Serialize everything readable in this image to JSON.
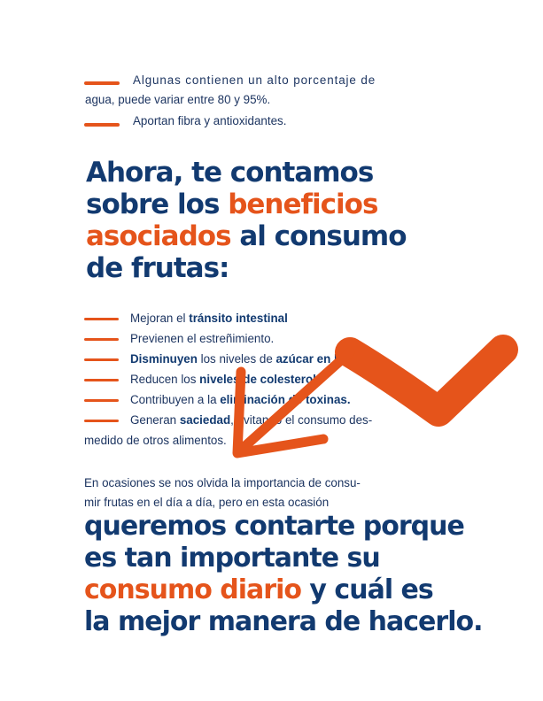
{
  "intro": {
    "item1_text": "Algunas contienen un alto porcentaje de",
    "item1_text_cont": "agua, puede variar entre 80 y 95%.",
    "item2_text": "Aportan fibra y antioxidantes."
  },
  "heading1": {
    "l1": "Ahora, te contamos",
    "l2_a": "sobre los ",
    "l2_b": "beneficios",
    "l3_a": "asociados",
    "l3_b": " al consumo",
    "l4": "de frutas:"
  },
  "benefits": {
    "b1_pre": "Mejoran el ",
    "b1_bold": "tránsito intestinal",
    "b2": "Previenen el estreñimiento.",
    "b3_bold": "Disminuyen",
    "b3_mid": " los niveles de ",
    "b3_bold2": "azúcar en la sangre",
    "b3_end": ".",
    "b4_pre": "Reducen los ",
    "b4_bold": "niveles de colesterol",
    "b4_end": ".",
    "b5_pre": "Contribuyen a la ",
    "b5_bold": "eliminación de toxinas.",
    "b6_pre": "Generan ",
    "b6_bold": "saciedad",
    "b6_end": ", evitando el consumo des-",
    "b6_cont": "medido de otros alimentos."
  },
  "paragraph": {
    "l1": "En ocasiones se nos olvida la importancia de consu-",
    "l2": "mir frutas en el día a día, pero en esta ocasión"
  },
  "heading2": {
    "l1": "queremos contarte porque",
    "l2": "es tan importante su",
    "l3_a": "consumo diario",
    "l3_b": " y cuál es",
    "l4": "la mejor manera de hacerlo."
  },
  "colors": {
    "navy": "#123a70",
    "orange": "#e5541b"
  }
}
